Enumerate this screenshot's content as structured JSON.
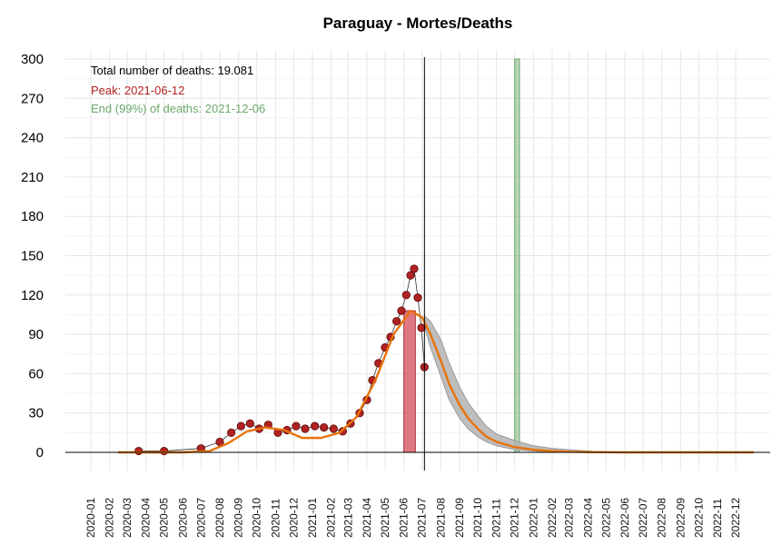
{
  "chart_data": {
    "type": "line",
    "title": "Paraguay - Mortes/Deaths",
    "xlabel": "",
    "ylabel": "",
    "ylim": [
      0,
      300
    ],
    "y_ticks": [
      0,
      30,
      60,
      90,
      120,
      150,
      180,
      210,
      240,
      270,
      300
    ],
    "x_ticks": [
      "2020-01",
      "2020-02",
      "2020-03",
      "2020-04",
      "2020-05",
      "2020-06",
      "2020-07",
      "2020-08",
      "2020-09",
      "2020-10",
      "2020-11",
      "2020-12",
      "2021-01",
      "2021-02",
      "2021-03",
      "2021-04",
      "2021-05",
      "2021-06",
      "2021-07",
      "2021-08",
      "2021-09",
      "2021-10",
      "2021-11",
      "2021-12",
      "2022-01",
      "2022-02",
      "2022-03",
      "2022-04",
      "2022-05",
      "2022-06",
      "2022-07",
      "2022-08",
      "2022-09",
      "2022-10",
      "2022-11",
      "2022-12"
    ],
    "grid": true,
    "annotations": {
      "total": "Total number of deaths: 19.081",
      "peak": "Peak: 2021-06-12",
      "end": "End (99%) of deaths: 2021-12-06"
    },
    "colors": {
      "points": "#b22222",
      "fit": "#e8730c",
      "peak_band": "#d9606a",
      "end_band": "#7fb37f",
      "ci_band": "#b3b3b3"
    },
    "current_date": "2021-07-05",
    "peak_band": [
      "2021-06-01",
      "2021-06-20"
    ],
    "end_band": [
      "2021-12-01",
      "2021-12-09"
    ],
    "observed": {
      "x": [
        "2020-03-20",
        "2020-05-01",
        "2020-07-01",
        "2020-08-01",
        "2020-08-20",
        "2020-09-05",
        "2020-09-20",
        "2020-10-05",
        "2020-10-20",
        "2020-11-05",
        "2020-11-20",
        "2020-12-05",
        "2020-12-20",
        "2021-01-05",
        "2021-01-20",
        "2021-02-05",
        "2021-02-20",
        "2021-03-05",
        "2021-03-20",
        "2021-04-01",
        "2021-04-10",
        "2021-04-20",
        "2021-05-01",
        "2021-05-10",
        "2021-05-20",
        "2021-05-28",
        "2021-06-05",
        "2021-06-12",
        "2021-06-18",
        "2021-06-24",
        "2021-06-30",
        "2021-07-05"
      ],
      "y": [
        1,
        1,
        3,
        8,
        15,
        20,
        22,
        18,
        21,
        15,
        17,
        20,
        18,
        20,
        19,
        18,
        16,
        22,
        30,
        40,
        55,
        68,
        80,
        88,
        100,
        108,
        120,
        135,
        140,
        118,
        95,
        65
      ]
    },
    "fit": {
      "x": [
        "2020-02-15",
        "2020-06-01",
        "2020-07-15",
        "2020-08-15",
        "2020-09-15",
        "2020-10-15",
        "2020-11-15",
        "2020-12-15",
        "2021-01-15",
        "2021-02-15",
        "2021-03-15",
        "2021-04-15",
        "2021-05-15",
        "2021-06-12",
        "2021-07-01",
        "2021-07-15",
        "2021-08-01",
        "2021-08-15",
        "2021-09-01",
        "2021-09-15",
        "2021-10-01",
        "2021-10-15",
        "2021-11-01",
        "2021-12-01",
        "2022-01-01",
        "2022-02-01",
        "2022-03-01",
        "2022-04-01",
        "2022-06-01",
        "2022-09-01",
        "2022-12-31"
      ],
      "y": [
        0,
        0,
        1,
        7,
        16,
        19,
        17,
        11,
        11,
        15,
        27,
        55,
        90,
        108,
        103,
        90,
        70,
        52,
        36,
        26,
        18,
        12,
        8,
        4,
        2,
        1,
        0.5,
        0.2,
        0,
        0,
        0
      ]
    },
    "ci_upper": {
      "x": [
        "2021-07-05",
        "2021-07-15",
        "2021-08-01",
        "2021-08-15",
        "2021-09-01",
        "2021-09-15",
        "2021-10-01",
        "2021-10-15",
        "2021-11-01",
        "2021-12-01",
        "2022-01-01",
        "2022-02-01",
        "2022-03-01",
        "2022-04-01",
        "2022-05-01"
      ],
      "y": [
        104,
        100,
        86,
        68,
        50,
        38,
        28,
        20,
        14,
        9,
        5,
        3,
        2,
        1,
        0
      ]
    },
    "ci_lower": {
      "x": [
        "2021-07-05",
        "2021-07-15",
        "2021-08-01",
        "2021-08-15",
        "2021-09-01",
        "2021-09-15",
        "2021-10-01",
        "2021-10-15",
        "2021-11-01",
        "2021-12-01",
        "2022-01-01",
        "2022-02-01",
        "2022-03-01",
        "2022-04-01",
        "2022-05-01"
      ],
      "y": [
        96,
        80,
        58,
        40,
        26,
        18,
        12,
        8,
        5,
        2,
        1,
        0,
        0,
        0,
        0
      ]
    }
  }
}
